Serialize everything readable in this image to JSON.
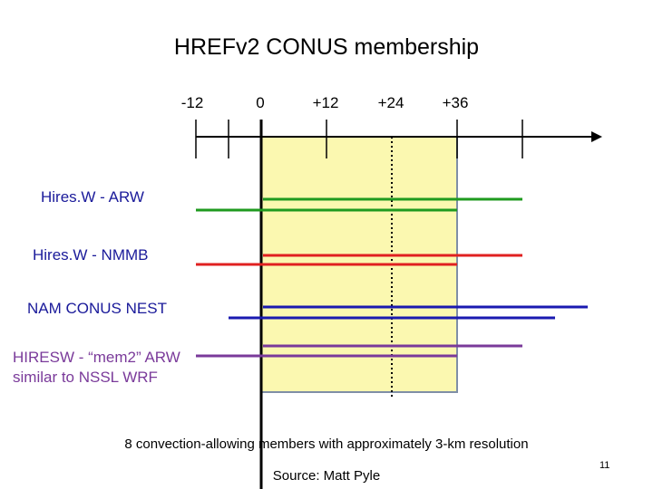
{
  "title": "HREFv2 CONUS membership",
  "timeline": {
    "tick_labels": [
      "-12",
      "0",
      "+12",
      "+24",
      "+36"
    ]
  },
  "members": [
    {
      "label": "Hires.W - ARW",
      "color": "#1f9a1f"
    },
    {
      "label": "Hires.W - NMMB",
      "color": "#e02020"
    },
    {
      "label": "NAM CONUS NEST",
      "color": "#1a1ab0"
    },
    {
      "label": "HIRESW - “mem2” ARW\nsimilar to NSSL WRF",
      "color": "#7a3a9a"
    }
  ],
  "window_color": "#fbf8b0",
  "caption": "8 convection-allowing members with approximately 3-km resolution",
  "source": "Source: Matt Pyle",
  "page_number": "11"
}
